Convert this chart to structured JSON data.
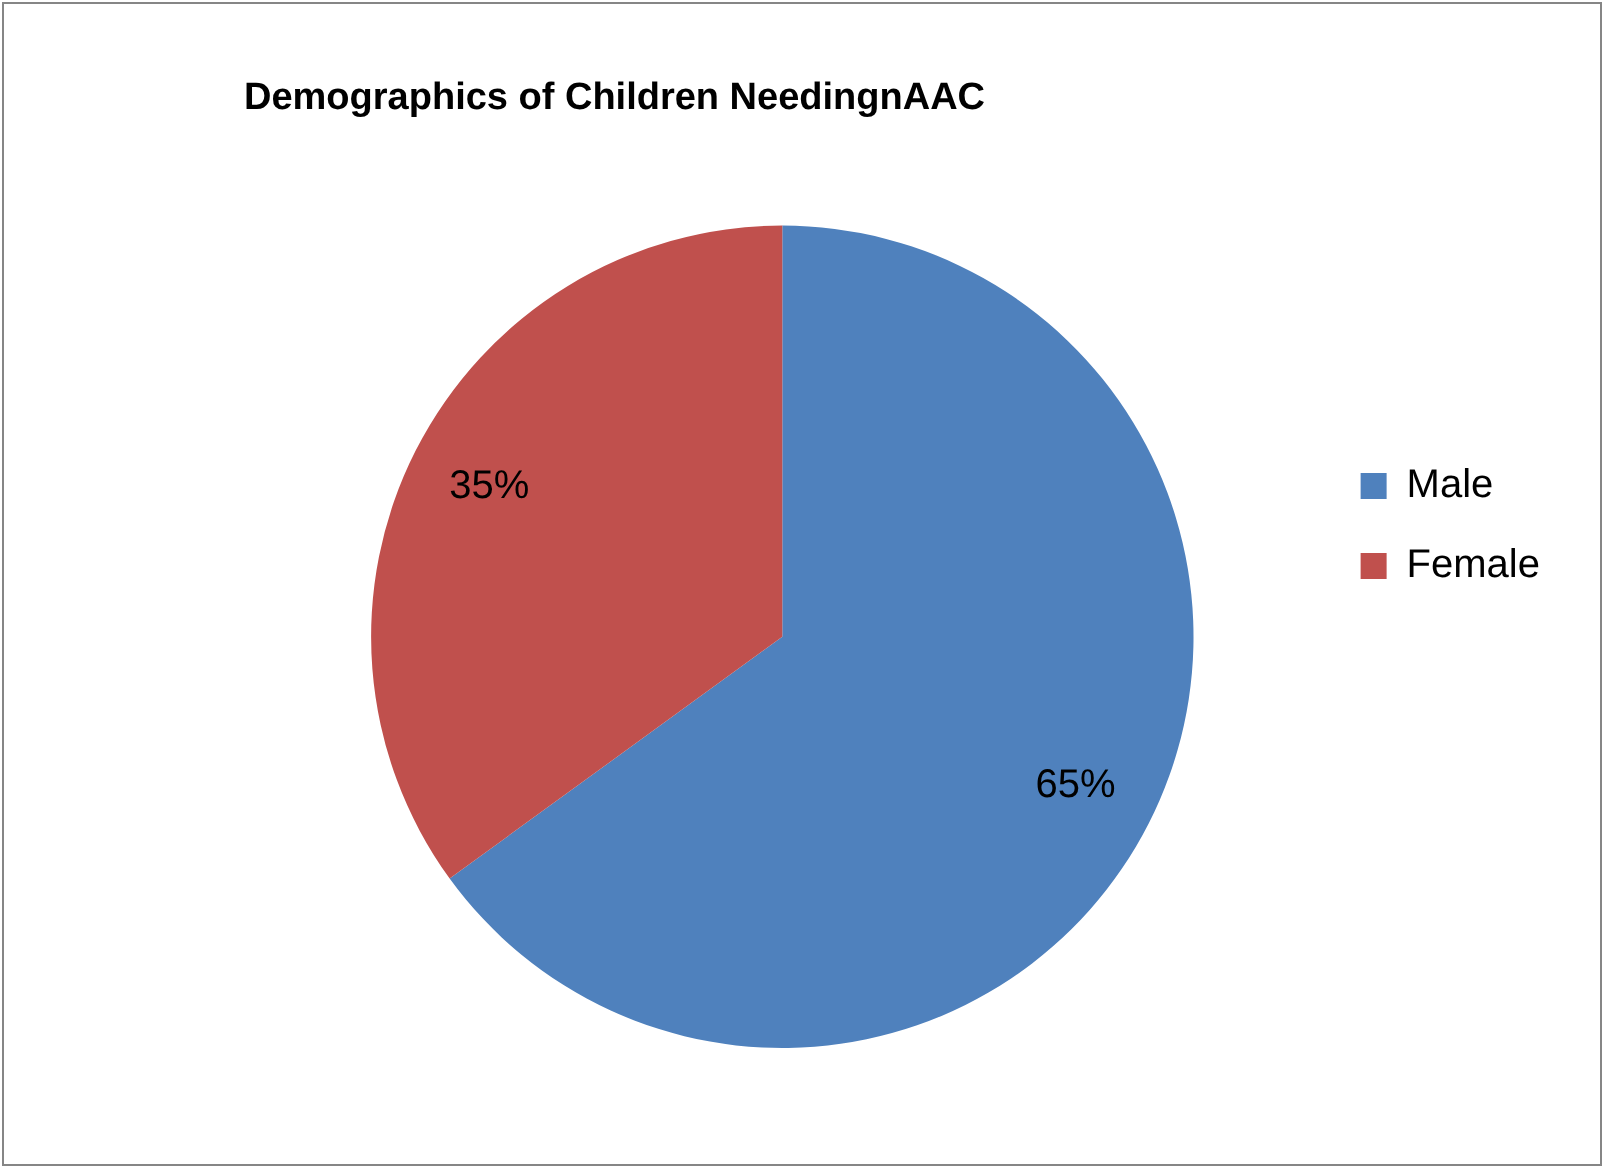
{
  "chart_data": {
    "type": "pie",
    "title": "Demographics of Children NeedingnAAC",
    "categories": [
      "Male",
      "Female"
    ],
    "values": [
      65,
      35
    ],
    "colors": [
      "#4f81bd",
      "#c0504d"
    ],
    "value_labels": [
      "65%",
      "35%"
    ],
    "legend": "right"
  }
}
